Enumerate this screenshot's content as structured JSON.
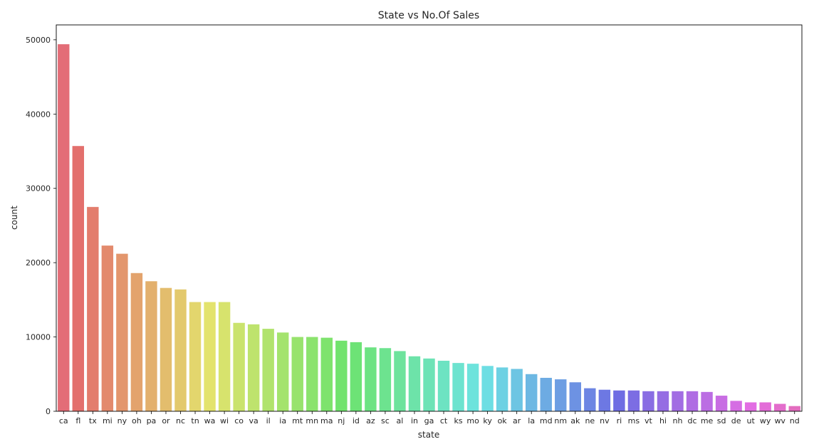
{
  "chart_data": {
    "type": "bar",
    "title": "State vs No.Of Sales",
    "xlabel": "state",
    "ylabel": "count",
    "ylim": [
      0,
      52000
    ],
    "yticks": [
      0,
      10000,
      20000,
      30000,
      40000,
      50000
    ],
    "grid": false,
    "legend": "none",
    "categories": [
      "ca",
      "fl",
      "tx",
      "mi",
      "ny",
      "oh",
      "pa",
      "or",
      "nc",
      "tn",
      "wa",
      "wi",
      "co",
      "va",
      "il",
      "ia",
      "mt",
      "mn",
      "ma",
      "nj",
      "id",
      "az",
      "sc",
      "al",
      "in",
      "ga",
      "ct",
      "ks",
      "mo",
      "ky",
      "ok",
      "ar",
      "la",
      "md",
      "nm",
      "ak",
      "ne",
      "nv",
      "ri",
      "ms",
      "vt",
      "hi",
      "nh",
      "dc",
      "me",
      "sd",
      "de",
      "ut",
      "wy",
      "wv",
      "nd"
    ],
    "values": [
      49400,
      35700,
      27500,
      22300,
      21200,
      18600,
      17500,
      16600,
      16400,
      14700,
      14700,
      14700,
      11900,
      11700,
      11100,
      10600,
      10000,
      10000,
      9900,
      9500,
      9300,
      8600,
      8500,
      8100,
      7400,
      7100,
      6800,
      6500,
      6400,
      6100,
      5900,
      5700,
      5000,
      4500,
      4300,
      3900,
      3100,
      2900,
      2800,
      2800,
      2700,
      2700,
      2700,
      2700,
      2600,
      2100,
      1400,
      1200,
      1200,
      1000,
      700
    ]
  }
}
